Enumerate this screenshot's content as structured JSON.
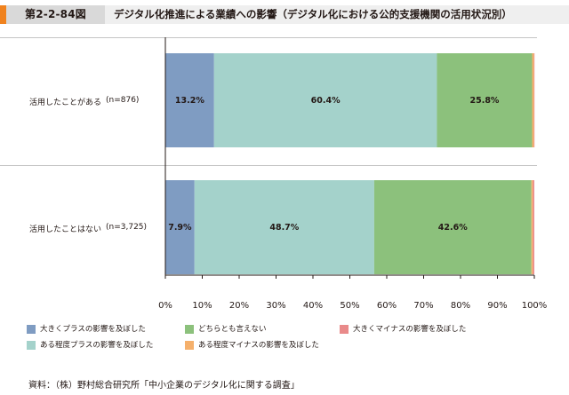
{
  "figure": {
    "number": "第2-2-84図",
    "title": "デジタル化推進による業績への影響（デジタル化における公的支援機関の活用状況別）"
  },
  "rows": [
    {
      "label": "活用したことがある",
      "n": "(n=876)"
    },
    {
      "label": "活用したことはない",
      "n": "(n=3,725)"
    }
  ],
  "legend": [
    {
      "label": "大きくプラスの影響を及ぼした",
      "color": "#7f9cc2"
    },
    {
      "label": "どちらとも言えない",
      "color": "#8cc17c"
    },
    {
      "label": "大きくマイナスの影響を及ぼした",
      "color": "#e98a8a"
    },
    {
      "label": "ある程度プラスの影響を及ぼした",
      "color": "#a4d2cb"
    },
    {
      "label": "ある程度マイナスの影響を及ぼした",
      "color": "#f5b06b"
    }
  ],
  "source": "資料：（株）野村総合研究所「中小企業のデジタル化に関する調査」",
  "chart_data": {
    "type": "bar",
    "orientation": "horizontal",
    "stacked": true,
    "categories": [
      "活用したことがある　(n=876)",
      "活用したことはない　(n=3,725)"
    ],
    "series": [
      {
        "name": "大きくプラスの影響を及ぼした",
        "values": [
          13.2,
          7.9
        ],
        "labels": [
          "13.2%",
          "7.9%"
        ],
        "color": "#7f9cc2"
      },
      {
        "name": "ある程度プラスの影響を及ぼした",
        "values": [
          60.4,
          48.7
        ],
        "labels": [
          "60.4%",
          "48.7%"
        ],
        "color": "#a4d2cb"
      },
      {
        "name": "どちらとも言えない",
        "values": [
          25.8,
          42.6
        ],
        "labels": [
          "25.8%",
          "42.6%"
        ],
        "color": "#8cc17c"
      },
      {
        "name": "ある程度マイナスの影響を及ぼした",
        "values": [
          0.5,
          0.4
        ],
        "labels": [
          "",
          ""
        ],
        "color": "#f5b06b"
      },
      {
        "name": "大きくマイナスの影響を及ぼした",
        "values": [
          0.1,
          0.4
        ],
        "labels": [
          "",
          ""
        ],
        "color": "#e98a8a"
      }
    ],
    "xlim": [
      0,
      100
    ],
    "xticks": [
      "0%",
      "10%",
      "20%",
      "30%",
      "40%",
      "50%",
      "60%",
      "70%",
      "80%",
      "90%",
      "100%"
    ],
    "grid": false,
    "legend_position": "bottom"
  }
}
